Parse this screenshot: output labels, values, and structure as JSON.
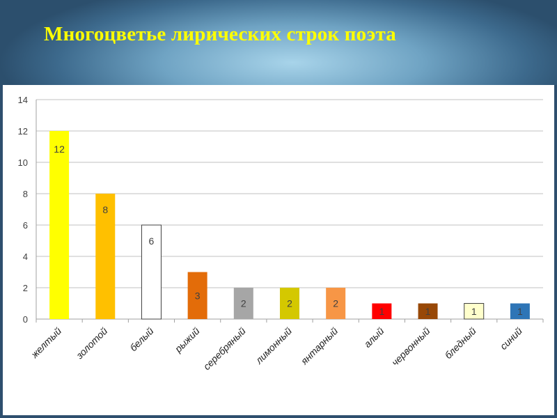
{
  "header": {
    "title": "Многоцветье  лирических строк поэта"
  },
  "chart_data": {
    "type": "bar",
    "title": "Многоцветье  лирических строк поэта",
    "xlabel": "",
    "ylabel": "",
    "ylim": [
      0,
      14
    ],
    "yticks": [
      0,
      2,
      4,
      6,
      8,
      10,
      12,
      14
    ],
    "grid": true,
    "legend": "none",
    "categories": [
      "желтый",
      "золотой",
      "белый",
      "рыжий",
      "серебряный",
      "лимонный",
      "янтарный",
      "алый",
      "червонный",
      "бледный",
      "синий"
    ],
    "values": [
      12,
      8,
      6,
      3,
      2,
      2,
      2,
      1,
      1,
      1,
      1
    ],
    "colors": [
      "#ffff00",
      "#ffc000",
      "#ffffff",
      "#e36c09",
      "#a6a6a6",
      "#d4c800",
      "#f79646",
      "#ff0000",
      "#984807",
      "#ffffcc",
      "#2e75b6"
    ],
    "data_labels": [
      "12",
      "8",
      "6",
      "3",
      "2",
      "2",
      "2",
      "1",
      "1",
      "1",
      "1"
    ]
  }
}
